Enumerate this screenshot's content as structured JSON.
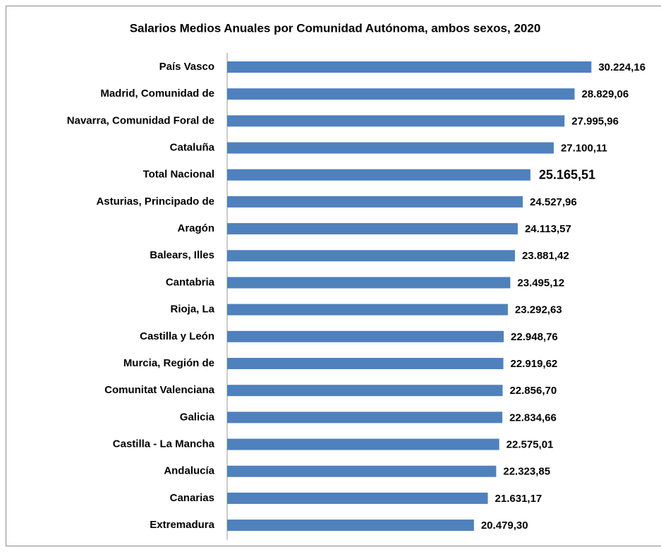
{
  "chart_data": {
    "type": "bar",
    "orientation": "horizontal",
    "title": "Salarios Medios Anuales por Comunidad Autónoma, ambos sexos, 2020",
    "categories": [
      "País Vasco",
      "Madrid, Comunidad de",
      "Navarra, Comunidad Foral de",
      "Cataluña",
      "Total Nacional",
      "Asturias, Principado de",
      "Aragón",
      "Balears, Illes",
      "Cantabria",
      "Rioja, La",
      "Castilla y León",
      "Murcia, Región de",
      "Comunitat Valenciana",
      "Galicia",
      "Castilla - La Mancha",
      "Andalucía",
      "Canarias",
      "Extremadura"
    ],
    "values": [
      30224.16,
      28829.06,
      27995.96,
      27100.11,
      25165.51,
      24527.96,
      24113.57,
      23881.42,
      23495.12,
      23292.63,
      22948.76,
      22919.62,
      22856.7,
      22834.66,
      22575.01,
      22323.85,
      21631.17,
      20479.3
    ],
    "value_labels": [
      "30.224,16",
      "28.829,06",
      "27.995,96",
      "27.100,11",
      "25.165,51",
      "24.527,96",
      "24.113,57",
      "23.881,42",
      "23.495,12",
      "23.292,63",
      "22.948,76",
      "22.919,62",
      "22.856,70",
      "22.834,66",
      "22.575,01",
      "22.323,85",
      "21.631,17",
      "20.479,30"
    ],
    "value_label_colors": [
      "#000000",
      "#000000",
      "#000000",
      "#000000",
      "#c00000",
      "#000000",
      "#000000",
      "#000000",
      "#000000",
      "#000000",
      "#000000",
      "#000000",
      "#000000",
      "#000000",
      "#000000",
      "#000000",
      "#000000",
      "#000000"
    ],
    "color": "#4f81bd",
    "xlim": [
      0,
      36000
    ]
  }
}
